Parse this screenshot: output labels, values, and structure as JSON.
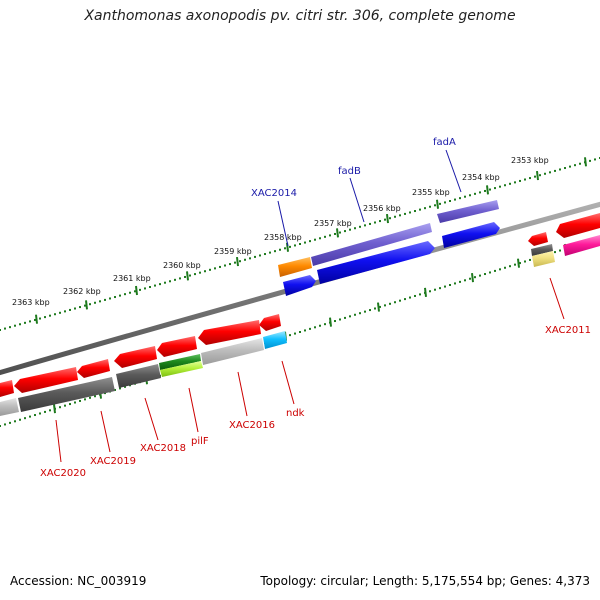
{
  "title": "Xanthomonas axonopodis pv. citri str. 306, complete genome",
  "footer": {
    "accession": "Accession: NC_003919",
    "summary": "Topology: circular; Length: 5,175,554 bp; Genes: 4,373"
  },
  "colors": {
    "backbone": "#808080",
    "tick": "#1e7a1e",
    "label_plus": "#1a1aa8",
    "label_minus": "#cc0000"
  },
  "kbp_ticks": [
    "2353 kbp",
    "2354 kbp",
    "2355 kbp",
    "2356 kbp",
    "2357 kbp",
    "2358 kbp",
    "2359 kbp",
    "2360 kbp",
    "2361 kbp",
    "2362 kbp",
    "2363 kbp"
  ],
  "gene_labels": [
    {
      "text": "fadA",
      "color": "#1a1aa8"
    },
    {
      "text": "fadB",
      "color": "#1a1aa8"
    },
    {
      "text": "XAC2014",
      "color": "#1a1aa8"
    },
    {
      "text": "XAC2011",
      "color": "#cc0000"
    },
    {
      "text": "ndk",
      "color": "#cc0000"
    },
    {
      "text": "XAC2016",
      "color": "#cc0000"
    },
    {
      "text": "pilF",
      "color": "#cc0000"
    },
    {
      "text": "XAC2018",
      "color": "#cc0000"
    },
    {
      "text": "XAC2019",
      "color": "#cc0000"
    },
    {
      "text": "XAC2020",
      "color": "#cc0000"
    }
  ]
}
